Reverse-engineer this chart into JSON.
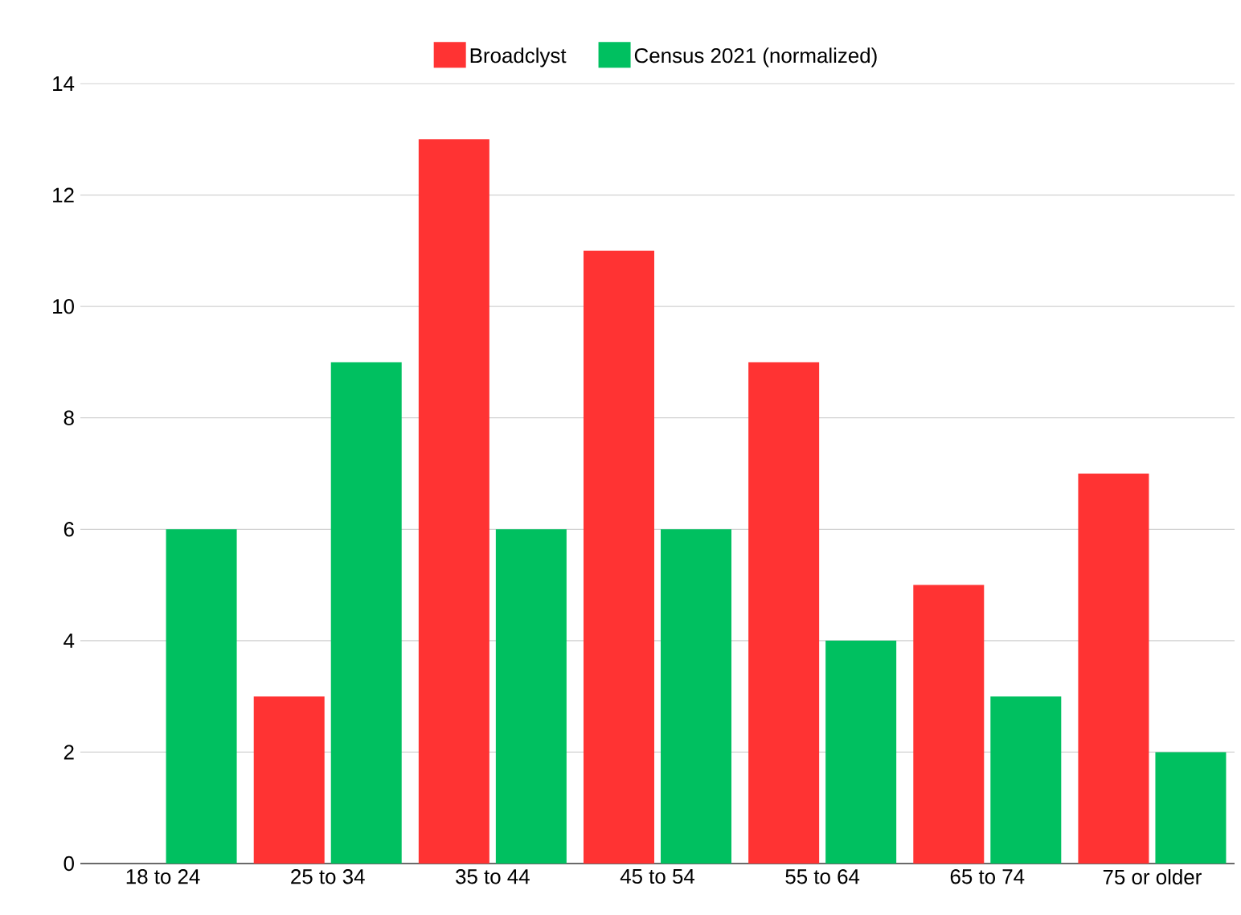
{
  "chart_data": {
    "type": "bar",
    "categories": [
      "18 to 24",
      "25 to 34",
      "35 to 44",
      "45 to 54",
      "55 to 64",
      "65 to 74",
      "75 or older"
    ],
    "series": [
      {
        "name": "Broadclyst",
        "color": "#ff3333",
        "values": [
          0,
          3,
          13,
          11,
          9,
          5,
          7
        ]
      },
      {
        "name": "Census 2021 (normalized)",
        "color": "#00c060",
        "values": [
          6,
          9,
          6,
          6,
          4,
          3,
          2
        ]
      }
    ],
    "ylim": [
      0,
      14
    ],
    "yticks": [
      0,
      2,
      4,
      6,
      8,
      10,
      12,
      14
    ],
    "grid": "y",
    "legend": "top"
  }
}
